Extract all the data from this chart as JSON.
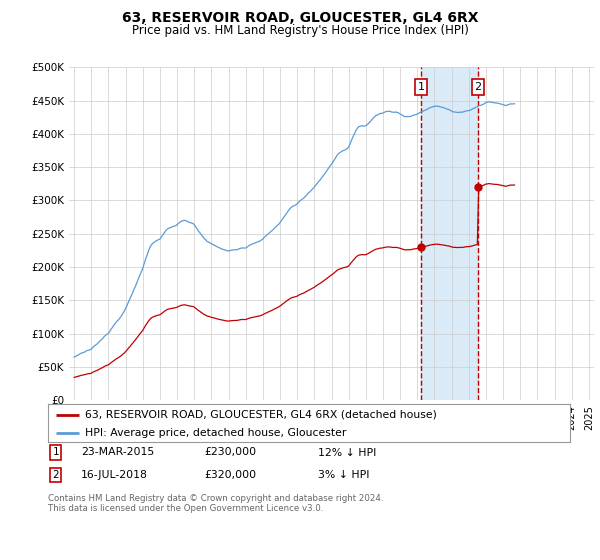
{
  "title": "63, RESERVOIR ROAD, GLOUCESTER, GL4 6RX",
  "subtitle": "Price paid vs. HM Land Registry's House Price Index (HPI)",
  "ylim": [
    0,
    500000
  ],
  "yticks": [
    0,
    50000,
    100000,
    150000,
    200000,
    250000,
    300000,
    350000,
    400000,
    450000,
    500000
  ],
  "ytick_labels": [
    "£0",
    "£50K",
    "£100K",
    "£150K",
    "£200K",
    "£250K",
    "£300K",
    "£350K",
    "£400K",
    "£450K",
    "£500K"
  ],
  "sale1_date": 2015.22,
  "sale1_price": 230000,
  "sale2_date": 2018.54,
  "sale2_price": 320000,
  "hpi_color": "#5b9bd5",
  "price_color": "#c00000",
  "shading_color": "#daeaf7",
  "legend_property_label": "63, RESERVOIR ROAD, GLOUCESTER, GL4 6RX (detached house)",
  "legend_hpi_label": "HPI: Average price, detached house, Gloucester",
  "table_row1": [
    "1",
    "23-MAR-2015",
    "£230,000",
    "12% ↓ HPI"
  ],
  "table_row2": [
    "2",
    "16-JUL-2018",
    "£320,000",
    "3% ↓ HPI"
  ],
  "footnote": "Contains HM Land Registry data © Crown copyright and database right 2024.\nThis data is licensed under the Open Government Licence v3.0.",
  "background_color": "#ffffff",
  "hpi_base_values": [
    65000,
    66000,
    67500,
    68000,
    69000,
    70000,
    71000,
    72000,
    73000,
    74000,
    75000,
    76000,
    77000,
    79000,
    81000,
    83000,
    85000,
    87000,
    89000,
    91000,
    93000,
    95000,
    97000,
    99000,
    101000,
    104000,
    107000,
    110000,
    113000,
    116000,
    119000,
    122000,
    125000,
    128000,
    131000,
    134000,
    138000,
    143000,
    148000,
    153000,
    158000,
    163000,
    168000,
    173000,
    178000,
    183000,
    188000,
    193000,
    198000,
    205000,
    212000,
    218000,
    224000,
    229000,
    233000,
    236000,
    238000,
    239000,
    240000,
    241000,
    242000,
    245000,
    248000,
    251000,
    254000,
    257000,
    259000,
    260000,
    261000,
    261500,
    262000,
    262000,
    263000,
    265000,
    267000,
    269000,
    270000,
    271000,
    270000,
    269000,
    268000,
    267000,
    266000,
    265000,
    263000,
    260000,
    257000,
    254000,
    251000,
    248000,
    245000,
    242000,
    240000,
    238000,
    237000,
    236000,
    235000,
    234000,
    233000,
    232000,
    231000,
    230000,
    229000,
    228000,
    227000,
    226000,
    225000,
    224000,
    224000,
    224500,
    225000,
    225500,
    226000,
    226500,
    227000,
    227500,
    228000,
    228500,
    229000,
    229500,
    230000,
    231000,
    232000,
    233000,
    234000,
    235000,
    236000,
    237000,
    238000,
    239000,
    240000,
    241000,
    242000,
    244000,
    246000,
    248000,
    250000,
    252000,
    254000,
    256000,
    258000,
    260000,
    262000,
    264000,
    267000,
    270000,
    273000,
    276000,
    279000,
    282000,
    285000,
    288000,
    290000,
    292000,
    293000,
    294000,
    295000,
    297000,
    299000,
    301000,
    303000,
    305000,
    307000,
    309000,
    311000,
    313000,
    315000,
    317000,
    319000,
    322000,
    325000,
    328000,
    331000,
    334000,
    337000,
    340000,
    343000,
    346000,
    349000,
    352000,
    355000,
    358000,
    361000,
    364000,
    367000,
    370000,
    372000,
    374000,
    375000,
    376000,
    377000,
    378000,
    380000,
    385000,
    390000,
    395000,
    400000,
    405000,
    408000,
    410000,
    411000,
    412000,
    412000,
    412000,
    413000,
    415000,
    417000,
    419000,
    421000,
    423000,
    425000,
    427000,
    428000,
    429000,
    430000,
    430500,
    431000,
    432000,
    433000,
    433500,
    434000,
    434000,
    433500,
    433000,
    432500,
    432000,
    431500,
    431000,
    430000,
    429000,
    428000,
    427000,
    426000,
    426000,
    426500,
    427000,
    427500,
    428000,
    428500,
    429000,
    430000,
    431000,
    432000,
    433000,
    434000,
    435000,
    436000,
    437000,
    438000,
    439000,
    440000,
    441000,
    441500,
    442000,
    442000,
    441500,
    441000,
    440500,
    440000,
    439000,
    438000,
    437000,
    436000,
    435000,
    434000,
    433500,
    433000,
    432500,
    432000,
    432000,
    432500,
    433000,
    433500,
    434000,
    434500,
    435000,
    435500,
    436000,
    437000,
    438000,
    439000,
    440000,
    441000,
    442000,
    443000,
    444000,
    445000,
    446000,
    447000,
    447500,
    448000,
    448000,
    447500,
    447000,
    446500,
    446000,
    445500,
    445000,
    444500,
    444000,
    443500,
    443000,
    443000,
    443500,
    444000,
    444500,
    445000,
    445500,
    446000
  ]
}
